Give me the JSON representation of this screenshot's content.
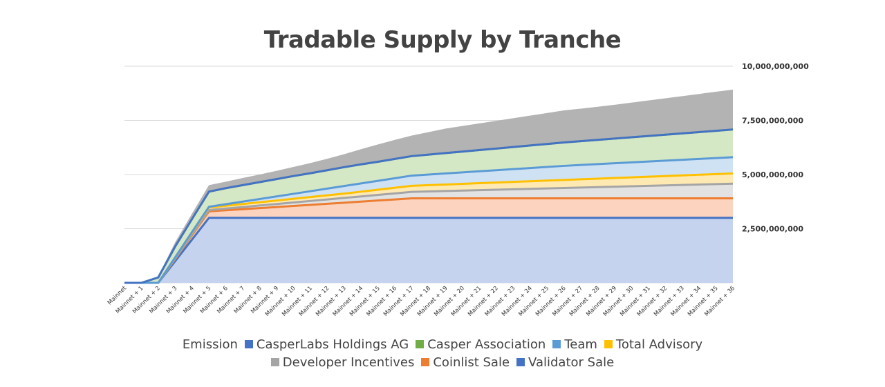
{
  "chart_data": {
    "type": "area",
    "title": "Tradable Supply by Tranche",
    "x": [
      "Mainnet",
      "Mainnet + 1",
      "Mainnet + 2",
      "Mainnet + 3",
      "Mainnet + 4",
      "Mainnet + 5",
      "Mainnet + 6",
      "Mainnet + 7",
      "Mainnet + 8",
      "Mainnet + 9",
      "Mainnet + 10",
      "Mainnet + 11",
      "Mainnet + 12",
      "Mainnet + 13",
      "Mainnet + 14",
      "Mainnet + 15",
      "Mainnet + 16",
      "Mainnet + 17",
      "Mainnet + 18",
      "Mainnet + 19",
      "Mainnet + 20",
      "Mainnet + 21",
      "Mainnet + 22",
      "Mainnet + 23",
      "Mainnet + 24",
      "Mainnet + 25",
      "Mainnet + 26",
      "Mainnet + 27",
      "Mainnet + 28",
      "Mainnet + 29",
      "Mainnet + 30",
      "Mainnet + 31",
      "Mainnet + 32",
      "Mainnet + 33",
      "Mainnet + 34",
      "Mainnet + 35",
      "Mainnet + 36"
    ],
    "stacked": true,
    "ylim": [
      0,
      10000000000
    ],
    "yticks": [
      "2,500,000,000",
      "5,000,000,000",
      "7,500,000,000",
      "10,000,000,000"
    ],
    "ytick_values": [
      2500000000,
      5000000000,
      7500000000,
      10000000000
    ],
    "y_axis_position": "right",
    "grid": true,
    "legend_title": "Emission",
    "legend_position": "bottom",
    "series": [
      {
        "name": "Validator Sale",
        "color": "#4472C4",
        "fill": "#C5D3EE",
        "style": "line",
        "values": [
          0,
          0,
          0,
          1000000000,
          2000000000,
          3000000000,
          3000000000,
          3000000000,
          3000000000,
          3000000000,
          3000000000,
          3000000000,
          3000000000,
          3000000000,
          3000000000,
          3000000000,
          3000000000,
          3000000000,
          3000000000,
          3000000000,
          3000000000,
          3000000000,
          3000000000,
          3000000000,
          3000000000,
          3000000000,
          3000000000,
          3000000000,
          3000000000,
          3000000000,
          3000000000,
          3000000000,
          3000000000,
          3000000000,
          3000000000,
          3000000000,
          3000000000
        ]
      },
      {
        "name": "Coinlist Sale",
        "color": "#ED7D31",
        "fill": "#FBD3BE",
        "style": "line",
        "values": [
          0,
          0,
          0,
          100000000,
          200000000,
          300000000,
          350000000,
          400000000,
          450000000,
          500000000,
          550000000,
          600000000,
          650000000,
          700000000,
          750000000,
          800000000,
          850000000,
          900000000,
          900000000,
          900000000,
          900000000,
          900000000,
          900000000,
          900000000,
          900000000,
          900000000,
          900000000,
          900000000,
          900000000,
          900000000,
          900000000,
          900000000,
          900000000,
          900000000,
          900000000,
          900000000,
          900000000
        ]
      },
      {
        "name": "Developer Incentives",
        "color": "#A5A5A5",
        "fill": "#E2E2E2",
        "style": "line",
        "values": [
          0,
          0,
          0,
          25000000,
          50000000,
          60000000,
          80000000,
          100000000,
          120000000,
          140000000,
          160000000,
          180000000,
          200000000,
          220000000,
          240000000,
          260000000,
          280000000,
          300000000,
          320000000,
          340000000,
          360000000,
          380000000,
          400000000,
          420000000,
          440000000,
          460000000,
          480000000,
          500000000,
          520000000,
          540000000,
          560000000,
          580000000,
          600000000,
          620000000,
          640000000,
          660000000,
          680000000
        ]
      },
      {
        "name": "Total Advisory",
        "color": "#FFC000",
        "fill": "#FFE9B3",
        "style": "line",
        "values": [
          0,
          0,
          0,
          40000000,
          80000000,
          120000000,
          130000000,
          140000000,
          150000000,
          160000000,
          170000000,
          180000000,
          190000000,
          200000000,
          220000000,
          240000000,
          260000000,
          280000000,
          290000000,
          300000000,
          310000000,
          320000000,
          330000000,
          340000000,
          350000000,
          360000000,
          370000000,
          380000000,
          390000000,
          400000000,
          410000000,
          420000000,
          430000000,
          440000000,
          450000000,
          460000000,
          470000000
        ]
      },
      {
        "name": "Team",
        "color": "#5B9BD5",
        "fill": "#CFE2F3",
        "style": "line",
        "values": [
          0,
          0,
          0,
          10000000,
          20000000,
          30000000,
          70000000,
          110000000,
          150000000,
          190000000,
          230000000,
          270000000,
          310000000,
          350000000,
          380000000,
          410000000,
          440000000,
          470000000,
          490000000,
          510000000,
          530000000,
          550000000,
          570000000,
          590000000,
          610000000,
          630000000,
          650000000,
          660000000,
          670000000,
          680000000,
          690000000,
          700000000,
          710000000,
          720000000,
          730000000,
          740000000,
          750000000
        ]
      },
      {
        "name": "Casper Association",
        "color": "#70AD47",
        "fill": "#D5E8C6",
        "style": "line",
        "values": [
          0,
          0,
          250000000,
          500000000,
          600000000,
          700000000,
          740000000,
          760000000,
          780000000,
          800000000,
          820000000,
          830000000,
          850000000,
          870000000,
          880000000,
          880000000,
          890000000,
          900000000,
          920000000,
          940000000,
          960000000,
          980000000,
          1000000000,
          1020000000,
          1040000000,
          1060000000,
          1080000000,
          1100000000,
          1120000000,
          1140000000,
          1160000000,
          1180000000,
          1200000000,
          1220000000,
          1240000000,
          1260000000,
          1280000000
        ]
      },
      {
        "name": "CasperLabs Holdings AG",
        "color": "#4472C4",
        "fill": "#D5E8C6",
        "style": "line",
        "values": [
          0,
          0,
          0,
          0,
          0,
          0,
          0,
          0,
          0,
          0,
          0,
          0,
          0,
          0,
          0,
          0,
          0,
          0,
          0,
          0,
          0,
          0,
          0,
          0,
          0,
          0,
          0,
          0,
          0,
          0,
          0,
          0,
          0,
          0,
          0,
          0,
          0
        ]
      },
      {
        "name": "Emission",
        "color": "#A5A5A5",
        "fill": "#B3B3B3",
        "style": "area",
        "values": [
          0,
          0,
          50000000,
          200000000,
          250000000,
          300000000,
          300000000,
          330000000,
          350000000,
          380000000,
          420000000,
          470000000,
          530000000,
          600000000,
          700000000,
          800000000,
          880000000,
          950000000,
          1040000000,
          1130000000,
          1180000000,
          1230000000,
          1280000000,
          1330000000,
          1380000000,
          1430000000,
          1480000000,
          1500000000,
          1530000000,
          1560000000,
          1600000000,
          1640000000,
          1680000000,
          1720000000,
          1760000000,
          1800000000,
          1840000000
        ]
      }
    ]
  },
  "legend": {
    "title": "Emission",
    "row1": [
      {
        "label": "CasperLabs Holdings AG",
        "color": "#4472C4"
      },
      {
        "label": "Casper Association",
        "color": "#70AD47"
      },
      {
        "label": "Team",
        "color": "#5B9BD5"
      },
      {
        "label": "Total Advisory",
        "color": "#FFC000"
      }
    ],
    "row2": [
      {
        "label": "Developer Incentives",
        "color": "#A5A5A5"
      },
      {
        "label": "Coinlist Sale",
        "color": "#ED7D31"
      },
      {
        "label": "Validator Sale",
        "color": "#4472C4"
      }
    ]
  }
}
